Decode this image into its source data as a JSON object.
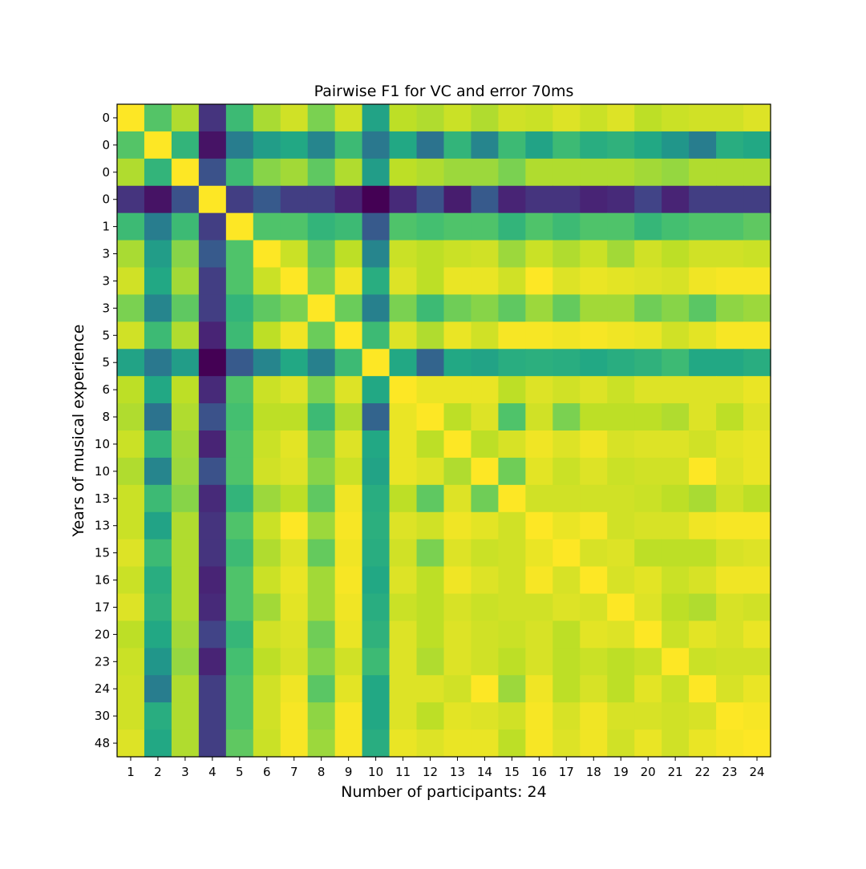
{
  "chart_data": {
    "type": "heatmap",
    "title": "Pairwise F1 for VC and error 70ms",
    "xlabel": "Number of participants: 24",
    "ylabel": "Years of musical experience",
    "x_tick_labels": [
      "1",
      "2",
      "3",
      "4",
      "5",
      "6",
      "7",
      "8",
      "9",
      "10",
      "11",
      "12",
      "13",
      "14",
      "15",
      "16",
      "17",
      "18",
      "19",
      "20",
      "21",
      "22",
      "23",
      "24"
    ],
    "y_tick_labels": [
      "0",
      "0",
      "0",
      "0",
      "1",
      "3",
      "3",
      "3",
      "5",
      "5",
      "6",
      "8",
      "10",
      "10",
      "13",
      "13",
      "15",
      "16",
      "17",
      "20",
      "23",
      "24",
      "30",
      "48"
    ],
    "colormap": "viridis",
    "value_range": [
      0,
      1
    ],
    "colorbar": false,
    "grid": false,
    "values": [
      [
        1.0,
        0.73,
        0.88,
        0.15,
        0.68,
        0.87,
        0.93,
        0.8,
        0.93,
        0.58,
        0.9,
        0.88,
        0.92,
        0.88,
        0.93,
        0.92,
        0.95,
        0.92,
        0.95,
        0.9,
        0.92,
        0.93,
        0.93,
        0.95
      ],
      [
        0.73,
        1.0,
        0.65,
        0.05,
        0.42,
        0.55,
        0.6,
        0.45,
        0.68,
        0.4,
        0.6,
        0.38,
        0.65,
        0.45,
        0.68,
        0.58,
        0.68,
        0.62,
        0.64,
        0.6,
        0.52,
        0.42,
        0.62,
        0.6
      ],
      [
        0.88,
        0.65,
        1.0,
        0.25,
        0.68,
        0.82,
        0.86,
        0.75,
        0.88,
        0.55,
        0.9,
        0.88,
        0.85,
        0.85,
        0.8,
        0.88,
        0.88,
        0.88,
        0.88,
        0.86,
        0.84,
        0.88,
        0.88,
        0.88
      ],
      [
        0.15,
        0.05,
        0.25,
        1.0,
        0.18,
        0.28,
        0.18,
        0.18,
        0.1,
        0,
        0.12,
        0.25,
        0.08,
        0.28,
        0.1,
        0.15,
        0.15,
        0.1,
        0.12,
        0.2,
        0.1,
        0.18,
        0.18,
        0.18
      ],
      [
        0.68,
        0.42,
        0.68,
        0.18,
        1.0,
        0.72,
        0.72,
        0.65,
        0.68,
        0.28,
        0.72,
        0.7,
        0.72,
        0.72,
        0.65,
        0.72,
        0.68,
        0.72,
        0.72,
        0.66,
        0.7,
        0.72,
        0.72,
        0.75
      ],
      [
        0.87,
        0.55,
        0.82,
        0.28,
        0.72,
        1.0,
        0.92,
        0.75,
        0.9,
        0.45,
        0.92,
        0.9,
        0.92,
        0.93,
        0.85,
        0.92,
        0.88,
        0.92,
        0.86,
        0.93,
        0.9,
        0.93,
        0.93,
        0.92
      ],
      [
        0.93,
        0.6,
        0.86,
        0.18,
        0.72,
        0.92,
        1.0,
        0.8,
        0.98,
        0.62,
        0.95,
        0.9,
        0.97,
        0.97,
        0.93,
        1.0,
        0.95,
        0.97,
        0.96,
        0.95,
        0.94,
        0.98,
        0.99,
        0.99
      ],
      [
        0.8,
        0.45,
        0.75,
        0.18,
        0.65,
        0.75,
        0.8,
        1.0,
        0.77,
        0.43,
        0.8,
        0.68,
        0.78,
        0.82,
        0.75,
        0.85,
        0.76,
        0.86,
        0.86,
        0.78,
        0.82,
        0.74,
        0.83,
        0.85
      ],
      [
        0.93,
        0.68,
        0.88,
        0.1,
        0.68,
        0.9,
        0.98,
        0.77,
        1.0,
        0.68,
        0.95,
        0.88,
        0.97,
        0.93,
        0.99,
        0.99,
        0.98,
        0.99,
        0.98,
        0.97,
        0.93,
        0.96,
        0.99,
        0.99
      ],
      [
        0.58,
        0.4,
        0.55,
        0,
        0.28,
        0.45,
        0.6,
        0.43,
        0.68,
        1.0,
        0.6,
        0.32,
        0.6,
        0.58,
        0.62,
        0.63,
        0.62,
        0.6,
        0.62,
        0.64,
        0.68,
        0.6,
        0.6,
        0.62
      ],
      [
        0.9,
        0.6,
        0.9,
        0.12,
        0.72,
        0.92,
        0.95,
        0.8,
        0.95,
        0.6,
        1.0,
        0.97,
        0.97,
        0.97,
        0.9,
        0.95,
        0.93,
        0.95,
        0.92,
        0.95,
        0.95,
        0.95,
        0.95,
        0.97
      ],
      [
        0.88,
        0.38,
        0.88,
        0.25,
        0.7,
        0.9,
        0.9,
        0.68,
        0.88,
        0.32,
        0.97,
        1.0,
        0.9,
        0.95,
        0.72,
        0.93,
        0.8,
        0.9,
        0.9,
        0.9,
        0.88,
        0.95,
        0.9,
        0.95
      ],
      [
        0.92,
        0.65,
        0.86,
        0.1,
        0.72,
        0.92,
        0.96,
        0.78,
        0.95,
        0.6,
        0.97,
        0.9,
        1.0,
        0.9,
        0.94,
        0.98,
        0.95,
        0.98,
        0.94,
        0.95,
        0.95,
        0.93,
        0.96,
        0.97
      ],
      [
        0.88,
        0.45,
        0.85,
        0.25,
        0.72,
        0.93,
        0.95,
        0.82,
        0.92,
        0.58,
        0.97,
        0.95,
        0.88,
        1.0,
        0.78,
        0.96,
        0.92,
        0.95,
        0.92,
        0.93,
        0.93,
        1.0,
        0.95,
        0.97
      ],
      [
        0.92,
        0.68,
        0.82,
        0.12,
        0.65,
        0.85,
        0.9,
        0.75,
        0.98,
        0.62,
        0.9,
        0.75,
        0.95,
        0.78,
        1.0,
        0.93,
        0.93,
        0.93,
        0.93,
        0.92,
        0.9,
        0.87,
        0.93,
        0.9
      ],
      [
        0.92,
        0.58,
        0.88,
        0.15,
        0.72,
        0.92,
        1.0,
        0.85,
        0.99,
        0.63,
        0.95,
        0.93,
        0.98,
        0.96,
        0.93,
        1.0,
        0.97,
        0.99,
        0.93,
        0.94,
        0.94,
        0.98,
        0.99,
        0.99
      ],
      [
        0.95,
        0.68,
        0.88,
        0.15,
        0.68,
        0.88,
        0.95,
        0.76,
        0.98,
        0.62,
        0.93,
        0.8,
        0.95,
        0.92,
        0.93,
        0.97,
        1.0,
        0.94,
        0.95,
        0.9,
        0.9,
        0.9,
        0.94,
        0.95
      ],
      [
        0.92,
        0.62,
        0.88,
        0.1,
        0.72,
        0.92,
        0.97,
        0.86,
        0.99,
        0.6,
        0.95,
        0.9,
        0.98,
        0.95,
        0.93,
        0.99,
        0.94,
        1.0,
        0.94,
        0.96,
        0.92,
        0.94,
        0.98,
        0.98
      ],
      [
        0.95,
        0.64,
        0.88,
        0.12,
        0.72,
        0.86,
        0.96,
        0.86,
        0.98,
        0.62,
        0.92,
        0.9,
        0.94,
        0.92,
        0.93,
        0.93,
        0.95,
        0.94,
        1.0,
        0.95,
        0.9,
        0.88,
        0.94,
        0.93
      ],
      [
        0.9,
        0.6,
        0.86,
        0.2,
        0.66,
        0.93,
        0.95,
        0.78,
        0.97,
        0.64,
        0.95,
        0.9,
        0.95,
        0.93,
        0.92,
        0.94,
        0.9,
        0.96,
        0.95,
        1.0,
        0.92,
        0.96,
        0.94,
        0.97
      ],
      [
        0.92,
        0.52,
        0.84,
        0.1,
        0.7,
        0.9,
        0.94,
        0.82,
        0.93,
        0.68,
        0.95,
        0.88,
        0.95,
        0.93,
        0.9,
        0.94,
        0.9,
        0.92,
        0.9,
        0.92,
        1.0,
        0.92,
        0.93,
        0.93
      ],
      [
        0.93,
        0.42,
        0.88,
        0.18,
        0.72,
        0.93,
        0.98,
        0.74,
        0.96,
        0.6,
        0.95,
        0.95,
        0.93,
        1.0,
        0.85,
        0.98,
        0.9,
        0.94,
        0.9,
        0.96,
        0.92,
        1.0,
        0.94,
        0.97
      ],
      [
        0.93,
        0.62,
        0.88,
        0.18,
        0.72,
        0.93,
        0.99,
        0.83,
        0.99,
        0.6,
        0.95,
        0.9,
        0.96,
        0.95,
        0.93,
        0.99,
        0.94,
        0.98,
        0.94,
        0.94,
        0.93,
        0.94,
        1.0,
        0.99
      ],
      [
        0.95,
        0.6,
        0.88,
        0.18,
        0.75,
        0.92,
        0.99,
        0.85,
        0.99,
        0.62,
        0.97,
        0.95,
        0.97,
        0.97,
        0.9,
        0.99,
        0.95,
        0.98,
        0.93,
        0.97,
        0.93,
        0.97,
        0.99,
        1.0
      ]
    ]
  }
}
